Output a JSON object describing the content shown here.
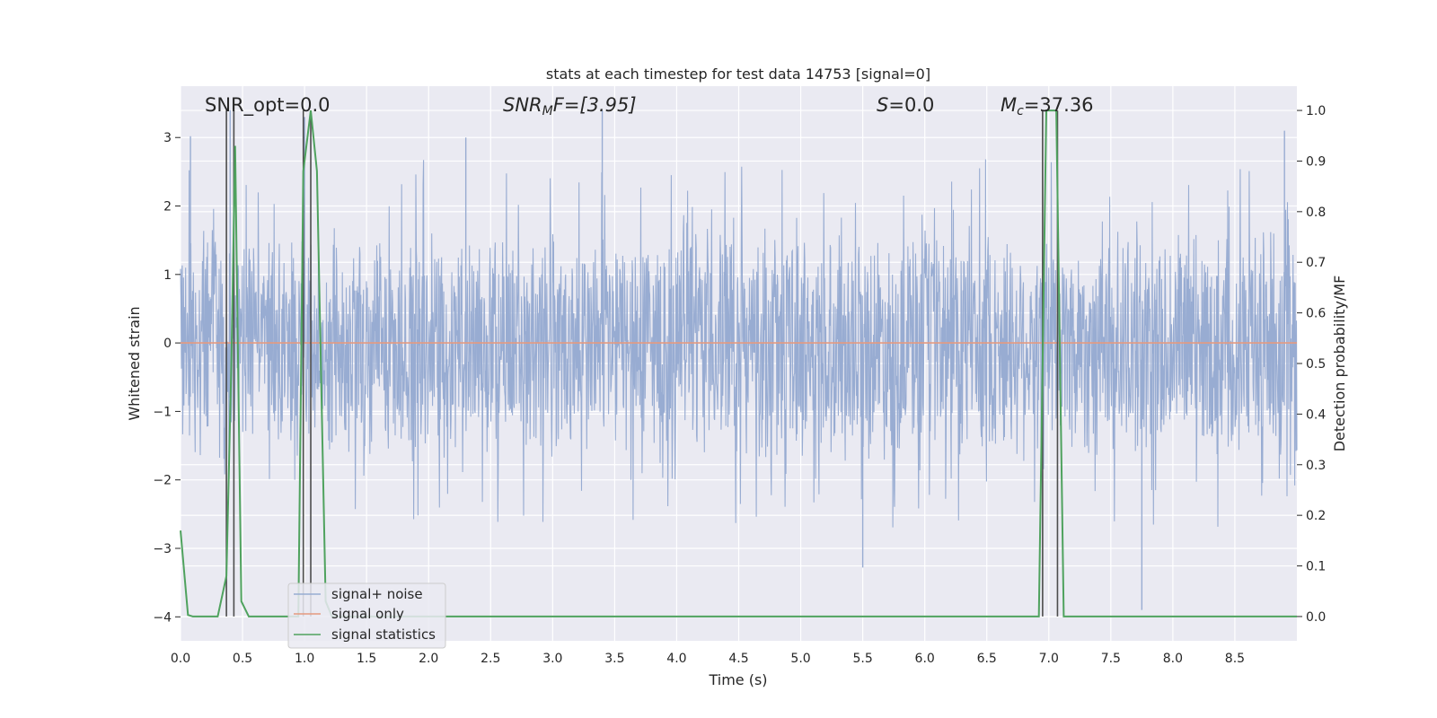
{
  "chart_data": {
    "type": "line",
    "title": "stats at each timestep for test data 14753 [signal=0]",
    "xlabel": "Time (s)",
    "ylabel": "Whitened strain",
    "y2label": "Detection probability/MF",
    "xlim": [
      0.0,
      9.0
    ],
    "ylim": [
      -4.35,
      3.75
    ],
    "y2lim": [
      -0.048,
      1.048
    ],
    "x_ticks": [
      "0.0",
      "0.5",
      "1.0",
      "1.5",
      "2.0",
      "2.5",
      "3.0",
      "3.5",
      "4.0",
      "4.5",
      "5.0",
      "5.5",
      "6.0",
      "6.5",
      "7.0",
      "7.5",
      "8.0",
      "8.5"
    ],
    "y_ticks": [
      "3",
      "2",
      "1",
      "0",
      "−1",
      "−2",
      "−3",
      "−4"
    ],
    "y2_ticks": [
      "1.0",
      "0.9",
      "0.8",
      "0.7",
      "0.6",
      "0.5",
      "0.4",
      "0.3",
      "0.2",
      "0.1",
      "0.0"
    ],
    "grid": true,
    "legend_position": "lower-left",
    "annotations": {
      "snr_opt": "SNR_opt=0.0",
      "snr_mf_main": "SNR",
      "snr_mf_sub": "M",
      "snr_mf_rest": "F=[3.95]",
      "s_main": "S",
      "s_rest": "=0.0",
      "mc_main": "M",
      "mc_sub": "c",
      "mc_rest": "=37.36"
    },
    "series": [
      {
        "name": "signal+ noise",
        "color": "#98acd2",
        "noise_envelope": {
          "typical_max": 1.8,
          "typical_min": -1.8,
          "peak_max": 3.4,
          "peak_min": -3.95
        },
        "notable_peaks": [
          [
            0.08,
            3.02
          ],
          [
            0.4,
            3.4
          ],
          [
            1.0,
            3.3
          ],
          [
            2.3,
            3.0
          ],
          [
            3.4,
            3.4
          ],
          [
            5.5,
            -3.28
          ],
          [
            7.75,
            -3.9
          ],
          [
            8.9,
            3.1
          ]
        ]
      },
      {
        "name": "signal only",
        "color": "#e59a80",
        "constant_value": 0.0
      },
      {
        "name": "signal statistics",
        "color": "#4fa25e",
        "axis": "right",
        "x": [
          0.0,
          0.06,
          0.1,
          0.3,
          0.37,
          0.41,
          0.44,
          0.49,
          0.55,
          0.95,
          0.99,
          1.05,
          1.1,
          1.17,
          1.22,
          6.92,
          6.98,
          7.06,
          7.12,
          7.15,
          9.0
        ],
        "y": [
          0.17,
          0.003,
          0.0,
          0.0,
          0.08,
          0.5,
          0.93,
          0.03,
          0.0,
          0.0,
          0.88,
          1.0,
          0.88,
          0.03,
          0.0,
          0.0,
          1.0,
          1.0,
          0.0,
          0.0,
          0.0
        ]
      }
    ],
    "vertical_markers": [
      0.37,
      0.43,
      0.99,
      1.05,
      6.95,
      7.07
    ],
    "marker_color": "#4d4d4d"
  }
}
